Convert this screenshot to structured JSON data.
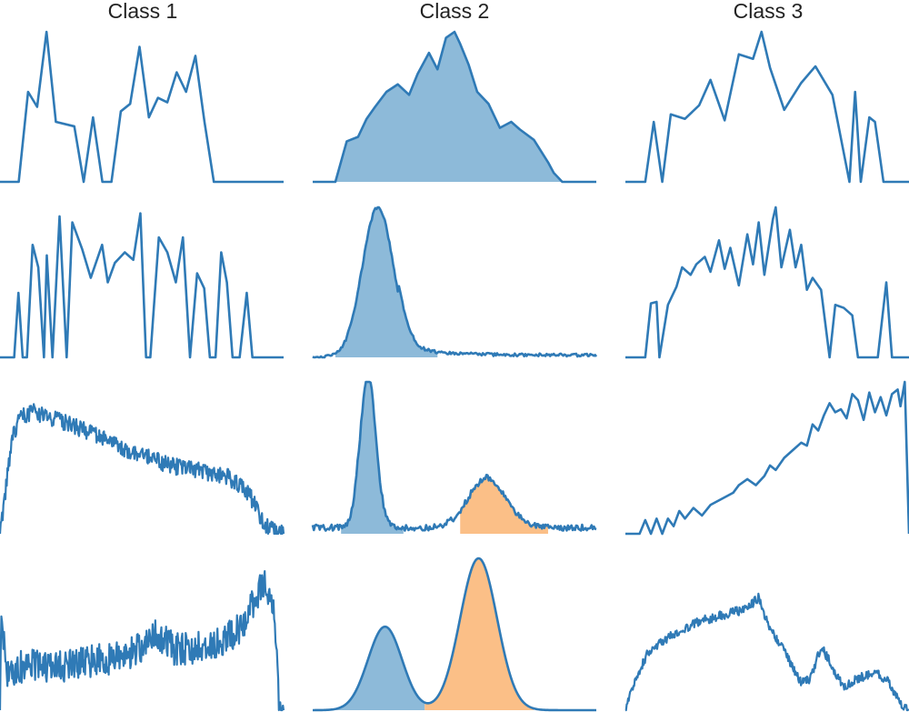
{
  "colors": {
    "line": "#2f7ab6",
    "fill_blue": "#8dbad9",
    "fill_orange": "#fbbf87",
    "background": "#ffffff"
  },
  "columns": [
    "Class 1",
    "Class 2",
    "Class 3"
  ],
  "chart_data": {
    "type": "line",
    "layout": "4x3 grid of small multiples, no axes, ticks, grid or legend",
    "ylim": [
      0,
      1
    ],
    "panels": [
      {
        "row": 1,
        "column": "Class 1",
        "kind": "points",
        "x": [
          0.0,
          0.066,
          0.099,
          0.131,
          0.164,
          0.197,
          0.262,
          0.295,
          0.328,
          0.361,
          0.393,
          0.426,
          0.459,
          0.492,
          0.525,
          0.557,
          0.59,
          0.623,
          0.656,
          0.689,
          0.721,
          0.754,
          0.787,
          0.82,
          0.852,
          0.885,
          0.918,
          0.951,
          0.984,
          1.0
        ],
        "y": [
          0.0,
          0.0,
          0.6,
          0.5,
          1.0,
          0.4,
          0.37,
          0.0,
          0.43,
          0.0,
          0.0,
          0.47,
          0.52,
          0.9,
          0.43,
          0.56,
          0.53,
          0.73,
          0.6,
          0.84,
          0.4,
          0.0,
          0.0,
          0.0,
          0.0,
          0.0,
          0.0,
          0.0,
          0.0,
          0.0
        ],
        "fills": []
      },
      {
        "row": 1,
        "column": "Class 2",
        "kind": "points",
        "x": [
          0.0,
          0.08,
          0.12,
          0.16,
          0.19,
          0.22,
          0.26,
          0.3,
          0.34,
          0.37,
          0.41,
          0.44,
          0.47,
          0.5,
          0.52,
          0.55,
          0.58,
          0.62,
          0.66,
          0.7,
          0.73,
          0.78,
          0.83,
          0.85,
          0.88,
          0.91,
          0.94,
          1.0
        ],
        "y": [
          0.0,
          0.0,
          0.27,
          0.3,
          0.42,
          0.5,
          0.6,
          0.65,
          0.58,
          0.72,
          0.86,
          0.75,
          0.96,
          1.0,
          0.92,
          0.78,
          0.6,
          0.52,
          0.36,
          0.4,
          0.35,
          0.28,
          0.13,
          0.06,
          0.0,
          0.0,
          0.0,
          0.0
        ],
        "fills": [
          {
            "from": 0.08,
            "to": 0.91,
            "color": "blue"
          }
        ]
      },
      {
        "row": 1,
        "column": "Class 3",
        "kind": "points",
        "x": [
          0.0,
          0.07,
          0.1,
          0.13,
          0.16,
          0.21,
          0.26,
          0.3,
          0.35,
          0.4,
          0.45,
          0.48,
          0.51,
          0.56,
          0.62,
          0.67,
          0.73,
          0.79,
          0.81,
          0.83,
          0.86,
          0.88,
          0.91,
          0.94,
          0.96,
          1.0
        ],
        "y": [
          0.0,
          0.0,
          0.4,
          0.0,
          0.45,
          0.42,
          0.51,
          0.68,
          0.41,
          0.85,
          0.82,
          1.0,
          0.76,
          0.48,
          0.66,
          0.77,
          0.58,
          0.0,
          0.6,
          0.0,
          0.43,
          0.4,
          0.0,
          0.0,
          0.0,
          0.0
        ],
        "fills": []
      },
      {
        "row": 2,
        "column": "Class 1",
        "kind": "points",
        "x": [
          0.0,
          0.05,
          0.065,
          0.08,
          0.095,
          0.115,
          0.135,
          0.155,
          0.165,
          0.185,
          0.21,
          0.235,
          0.255,
          0.29,
          0.32,
          0.36,
          0.38,
          0.405,
          0.44,
          0.47,
          0.495,
          0.515,
          0.53,
          0.56,
          0.59,
          0.62,
          0.645,
          0.67,
          0.695,
          0.72,
          0.74,
          0.76,
          0.78,
          0.8,
          0.82,
          0.845,
          0.87,
          0.89,
          0.915,
          0.94,
          0.96,
          1.0
        ],
        "y": [
          0.0,
          0.0,
          0.43,
          0.0,
          0.0,
          0.75,
          0.6,
          0.0,
          0.68,
          0.0,
          0.94,
          0.0,
          0.9,
          0.72,
          0.53,
          0.75,
          0.5,
          0.63,
          0.7,
          0.65,
          0.96,
          0.0,
          0.0,
          0.8,
          0.7,
          0.5,
          0.8,
          0.0,
          0.56,
          0.46,
          0.0,
          0.0,
          0.7,
          0.5,
          0.0,
          0.0,
          0.43,
          0.0,
          0.0,
          0.0,
          0.0,
          0.0
        ],
        "fills": []
      },
      {
        "row": 2,
        "column": "Class 2",
        "kind": "shape",
        "x_range": [
          0.0,
          1.0
        ],
        "components": [
          {
            "center": 0.23,
            "width": 0.055,
            "height": 1.0
          }
        ],
        "tail": {
          "start": 0.3,
          "level": 0.08,
          "decay": 0.12,
          "floor": 0.015
        },
        "noise": 0.01,
        "fills": [
          {
            "from": 0.08,
            "to": 0.44,
            "color": "blue"
          }
        ]
      },
      {
        "row": 2,
        "column": "Class 3",
        "kind": "points",
        "x": [
          0.0,
          0.07,
          0.09,
          0.11,
          0.12,
          0.15,
          0.18,
          0.2,
          0.23,
          0.25,
          0.28,
          0.3,
          0.33,
          0.35,
          0.37,
          0.4,
          0.43,
          0.45,
          0.47,
          0.49,
          0.52,
          0.53,
          0.55,
          0.58,
          0.6,
          0.62,
          0.64,
          0.66,
          0.69,
          0.72,
          0.74,
          0.77,
          0.8,
          0.82,
          0.84,
          0.87,
          0.89,
          0.92,
          0.94,
          0.95,
          0.97,
          1.0
        ],
        "y": [
          0.0,
          0.0,
          0.36,
          0.37,
          0.0,
          0.35,
          0.47,
          0.6,
          0.55,
          0.62,
          0.67,
          0.57,
          0.78,
          0.59,
          0.73,
          0.48,
          0.82,
          0.62,
          0.9,
          0.55,
          0.92,
          1.0,
          0.6,
          0.85,
          0.6,
          0.75,
          0.45,
          0.53,
          0.45,
          0.0,
          0.35,
          0.33,
          0.28,
          0.0,
          0.0,
          0.0,
          0.0,
          0.5,
          0.0,
          0.0,
          0.0,
          0.0
        ],
        "fills": []
      },
      {
        "row": 3,
        "column": "Class 1",
        "kind": "shape",
        "x_range": [
          0.0,
          1.0
        ],
        "envelope": [
          [
            0.0,
            0.0
          ],
          [
            0.02,
            0.28
          ],
          [
            0.04,
            0.6
          ],
          [
            0.07,
            0.78
          ],
          [
            0.12,
            0.8
          ],
          [
            0.25,
            0.72
          ],
          [
            0.45,
            0.55
          ],
          [
            0.6,
            0.45
          ],
          [
            0.8,
            0.38
          ],
          [
            0.88,
            0.26
          ],
          [
            0.93,
            0.06
          ],
          [
            0.97,
            0.02
          ],
          [
            1.0,
            0.0
          ]
        ],
        "noise": 0.055,
        "fills": []
      },
      {
        "row": 3,
        "column": "Class 2",
        "kind": "shape",
        "x_range": [
          0.0,
          1.0
        ],
        "components": [
          {
            "center": 0.195,
            "width": 0.028,
            "height": 1.0
          },
          {
            "center": 0.615,
            "width": 0.065,
            "height": 0.33
          }
        ],
        "baseline": 0.04,
        "noise": 0.02,
        "fills": [
          {
            "from": 0.1,
            "to": 0.32,
            "color": "blue"
          },
          {
            "from": 0.52,
            "to": 0.83,
            "color": "orange"
          }
        ]
      },
      {
        "row": 3,
        "column": "Class 3",
        "kind": "points",
        "x": [
          0.0,
          0.05,
          0.07,
          0.09,
          0.11,
          0.13,
          0.15,
          0.17,
          0.19,
          0.21,
          0.24,
          0.27,
          0.3,
          0.33,
          0.36,
          0.38,
          0.4,
          0.43,
          0.46,
          0.49,
          0.51,
          0.53,
          0.56,
          0.59,
          0.62,
          0.64,
          0.66,
          0.68,
          0.7,
          0.72,
          0.74,
          0.76,
          0.78,
          0.8,
          0.82,
          0.84,
          0.86,
          0.88,
          0.9,
          0.92,
          0.94,
          0.96,
          0.97,
          0.985,
          1.0
        ],
        "y": [
          0.0,
          0.0,
          0.09,
          0.0,
          0.1,
          0.0,
          0.1,
          0.05,
          0.15,
          0.1,
          0.17,
          0.12,
          0.19,
          0.22,
          0.25,
          0.27,
          0.32,
          0.36,
          0.32,
          0.38,
          0.45,
          0.42,
          0.5,
          0.55,
          0.6,
          0.58,
          0.72,
          0.68,
          0.78,
          0.86,
          0.8,
          0.82,
          0.76,
          0.92,
          0.88,
          0.75,
          0.93,
          0.8,
          0.9,
          0.78,
          0.92,
          0.95,
          0.84,
          1.0,
          0.0
        ],
        "fills": []
      },
      {
        "row": 4,
        "column": "Class 1",
        "kind": "shape",
        "x_range": [
          0.0,
          1.0
        ],
        "envelope": [
          [
            0.0,
            0.0
          ],
          [
            0.005,
            0.7
          ],
          [
            0.02,
            0.25
          ],
          [
            0.1,
            0.3
          ],
          [
            0.2,
            0.28
          ],
          [
            0.3,
            0.32
          ],
          [
            0.45,
            0.35
          ],
          [
            0.55,
            0.5
          ],
          [
            0.62,
            0.4
          ],
          [
            0.75,
            0.42
          ],
          [
            0.85,
            0.55
          ],
          [
            0.93,
            0.85
          ],
          [
            0.97,
            0.6
          ],
          [
            0.985,
            0.0
          ],
          [
            1.0,
            0.0
          ]
        ],
        "noise": 0.11,
        "fills": []
      },
      {
        "row": 4,
        "column": "Class 2",
        "kind": "shape",
        "x_range": [
          0.0,
          1.0
        ],
        "components": [
          {
            "center": 0.255,
            "width": 0.06,
            "height": 0.55
          },
          {
            "center": 0.585,
            "width": 0.065,
            "height": 1.0
          }
        ],
        "baseline": 0.0,
        "noise": 0.0,
        "fills": [
          {
            "from": 0.05,
            "to": 0.395,
            "color": "blue"
          },
          {
            "from": 0.395,
            "to": 0.78,
            "color": "orange"
          }
        ]
      },
      {
        "row": 4,
        "column": "Class 3",
        "kind": "shape",
        "x_range": [
          0.0,
          1.0
        ],
        "envelope": [
          [
            0.0,
            0.0
          ],
          [
            0.03,
            0.18
          ],
          [
            0.08,
            0.38
          ],
          [
            0.15,
            0.48
          ],
          [
            0.25,
            0.58
          ],
          [
            0.35,
            0.63
          ],
          [
            0.43,
            0.67
          ],
          [
            0.47,
            0.74
          ],
          [
            0.5,
            0.58
          ],
          [
            0.54,
            0.45
          ],
          [
            0.58,
            0.32
          ],
          [
            0.62,
            0.18
          ],
          [
            0.65,
            0.2
          ],
          [
            0.69,
            0.42
          ],
          [
            0.72,
            0.32
          ],
          [
            0.77,
            0.15
          ],
          [
            0.81,
            0.2
          ],
          [
            0.88,
            0.25
          ],
          [
            0.93,
            0.18
          ],
          [
            0.97,
            0.05
          ],
          [
            1.0,
            0.0
          ]
        ],
        "noise": 0.03,
        "fills": []
      }
    ]
  }
}
